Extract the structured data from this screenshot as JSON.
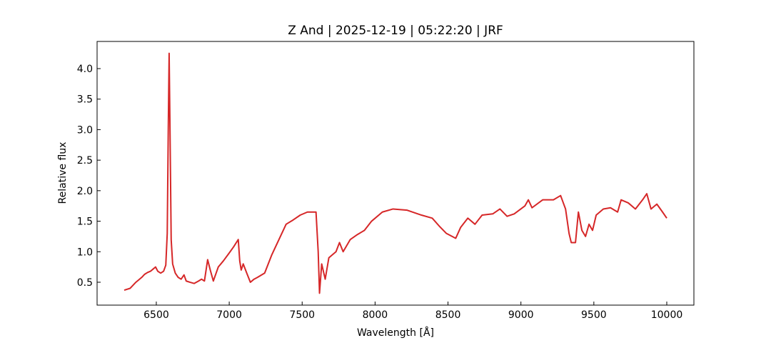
{
  "chart_data": {
    "type": "line",
    "title": "Z And | 2025-12-19 | 05:22:20 | JRF",
    "xlabel": "Wavelength [Å]",
    "ylabel": "Relative flux",
    "xlim": [
      6094,
      10186
    ],
    "ylim": [
      0.125,
      4.445
    ],
    "xticks": [
      6500,
      7000,
      7500,
      8000,
      8500,
      9000,
      9500,
      10000
    ],
    "yticks": [
      0.5,
      {
        "value": 1.0,
        "label": "1.0"
      },
      1.5,
      {
        "value": 2.0,
        "label": "2.0"
      },
      2.5,
      {
        "value": 3.0,
        "label": "3.0"
      },
      3.5,
      {
        "value": 4.0,
        "label": "4.0"
      }
    ],
    "grid": false,
    "series": [
      {
        "color": "#d62728",
        "x": [
          6280,
          6320,
          6360,
          6400,
          6420,
          6440,
          6460,
          6480,
          6495,
          6510,
          6530,
          6550,
          6565,
          6575,
          6582,
          6588,
          6594,
          6602,
          6612,
          6630,
          6650,
          6670,
          6690,
          6705,
          6730,
          6760,
          6790,
          6810,
          6830,
          6852,
          6870,
          6891,
          6925,
          6960,
          7000,
          7030,
          7062,
          7072,
          7082,
          7096,
          7120,
          7145,
          7170,
          7194,
          7243,
          7292,
          7341,
          7390,
          7438,
          7487,
          7536,
          7595,
          7610,
          7619,
          7634,
          7658,
          7683,
          7732,
          7756,
          7781,
          7830,
          7878,
          7927,
          7976,
          8050,
          8123,
          8220,
          8318,
          8392,
          8440,
          8489,
          8553,
          8587,
          8636,
          8685,
          8734,
          8807,
          8856,
          8905,
          8954,
          9027,
          9051,
          9076,
          9149,
          9223,
          9272,
          9306,
          9330,
          9345,
          9374,
          9394,
          9418,
          9443,
          9467,
          9491,
          9516,
          9565,
          9614,
          9663,
          9687,
          9736,
          9785,
          9834,
          9863,
          9892,
          9932,
          9971,
          10000
        ],
        "values": [
          0.37,
          0.4,
          0.5,
          0.58,
          0.63,
          0.66,
          0.68,
          0.72,
          0.75,
          0.68,
          0.65,
          0.68,
          0.78,
          1.3,
          3.0,
          4.25,
          3.0,
          1.2,
          0.8,
          0.65,
          0.58,
          0.55,
          0.62,
          0.52,
          0.5,
          0.48,
          0.52,
          0.55,
          0.52,
          0.87,
          0.7,
          0.52,
          0.75,
          0.85,
          0.98,
          1.08,
          1.2,
          0.85,
          0.7,
          0.8,
          0.65,
          0.5,
          0.55,
          0.58,
          0.65,
          0.95,
          1.2,
          1.45,
          1.52,
          1.6,
          1.65,
          1.65,
          1.0,
          0.32,
          0.8,
          0.55,
          0.9,
          1.0,
          1.15,
          1.0,
          1.2,
          1.28,
          1.35,
          1.5,
          1.65,
          1.7,
          1.68,
          1.6,
          1.55,
          1.42,
          1.3,
          1.22,
          1.4,
          1.55,
          1.45,
          1.6,
          1.62,
          1.7,
          1.58,
          1.62,
          1.75,
          1.85,
          1.72,
          1.85,
          1.85,
          1.92,
          1.7,
          1.3,
          1.15,
          1.15,
          1.65,
          1.35,
          1.25,
          1.45,
          1.35,
          1.6,
          1.7,
          1.72,
          1.65,
          1.85,
          1.8,
          1.7,
          1.85,
          1.95,
          1.7,
          1.78,
          1.65,
          1.55
        ]
      }
    ]
  }
}
